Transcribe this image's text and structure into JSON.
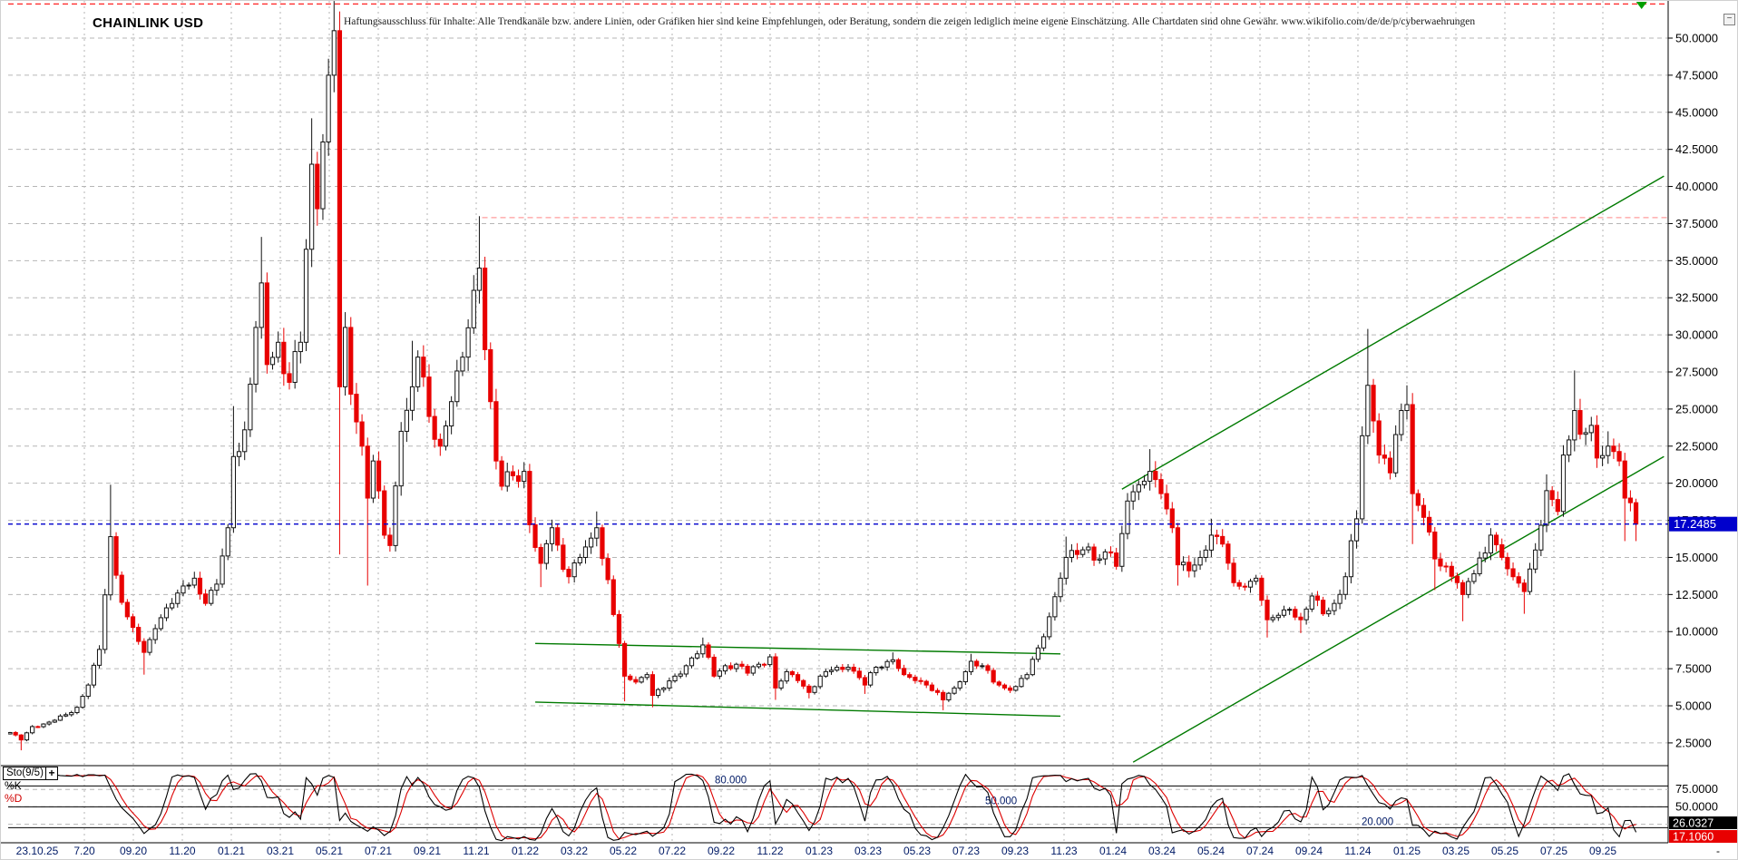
{
  "header": {
    "title": "CHAINLINK USD",
    "disclaimer": "Haftungsausschluss für Inhalte: Alle Trendkanäle bzw. andere Linien, oder Grafiken hier sind keine Empfehlungen, oder Beratung, sondern die zeigen lediglich meine eigene Einschätzung. Alle Chartdaten sind ohne Gewähr.  www.wikifolio.com/de/de/p/cyberwaehrungen",
    "minimize_label": "−"
  },
  "price_axis": {
    "labels": [
      "50.0000",
      "47.5000",
      "45.0000",
      "42.5000",
      "40.0000",
      "37.5000",
      "35.0000",
      "32.5000",
      "30.0000",
      "27.5000",
      "25.0000",
      "22.5000",
      "20.0000",
      "17.5000",
      "15.0000",
      "12.5000",
      "10.0000",
      "7.5000",
      "5.0000",
      "2.5000"
    ],
    "current_price_label": "17.2485",
    "current_price_color": "#0000cc"
  },
  "time_axis": {
    "first_label": "23.10.25",
    "labels": [
      "7.20",
      "09.20",
      "11.20",
      "01.21",
      "03.21",
      "05.21",
      "07.21",
      "09.21",
      "11.21",
      "01.22",
      "03.22",
      "05.22",
      "07.22",
      "09.22",
      "11.22",
      "01.23",
      "03.23",
      "05.23",
      "07.23",
      "09.23",
      "11.23",
      "01.24",
      "03.24",
      "05.24",
      "07.24",
      "09.24",
      "11.24",
      "01.25",
      "03.25",
      "05.25",
      "07.25",
      "09.25"
    ],
    "trailing_label": "-",
    "text_color": "#001a66"
  },
  "indicator": {
    "name": "Sto(9/5)",
    "plus_label": "+",
    "k_label": "%K",
    "d_label": "%D",
    "k_value": "26.0327",
    "d_value": "17.1060",
    "k_color": "#000000",
    "d_color": "#dd0000",
    "level_labels": [
      "80.000",
      "50.000",
      "20.000"
    ],
    "axis_labels": [
      "75.0000",
      "50.0000"
    ]
  },
  "colors": {
    "up_candle_fill": "#ffffff",
    "up_candle_border": "#111111",
    "down_candle": "#e80000",
    "grid": "#b6b6b6",
    "trend_green": "#007a00",
    "resistance_red": "#ff2222",
    "resistance_salmon": "#ff9c9c",
    "current_blue": "#0000cc",
    "tag_blue_bg": "#0000cc",
    "tag_black_bg": "#000000",
    "tag_red_bg": "#e80000"
  },
  "chart_data": {
    "type": "candlestick+stochastic",
    "symbol": "CHAINLINK USD",
    "timeframe": "weekly",
    "snapshot_date": "23.10.25",
    "weeks_total": 292,
    "last_price": 17.2485,
    "ylim": [
      1.0,
      53.5
    ],
    "price_gridstep": 2.5,
    "close_anchors": [
      [
        0,
        3.2
      ],
      [
        2,
        2.7
      ],
      [
        4,
        3.6
      ],
      [
        7,
        3.9
      ],
      [
        10,
        4.4
      ],
      [
        12,
        4.9
      ],
      [
        14,
        6.4
      ],
      [
        16,
        8.8
      ],
      [
        18,
        16.4
      ],
      [
        19,
        13.8
      ],
      [
        21,
        11.0
      ],
      [
        24,
        8.6
      ],
      [
        26,
        10.2
      ],
      [
        28,
        11.6
      ],
      [
        30,
        12.6
      ],
      [
        33,
        13.6
      ],
      [
        35,
        11.9
      ],
      [
        37,
        13.2
      ],
      [
        39,
        17.0
      ],
      [
        40,
        21.8
      ],
      [
        42,
        23.6
      ],
      [
        44,
        30.5
      ],
      [
        45,
        33.5
      ],
      [
        46,
        28.0
      ],
      [
        48,
        29.5
      ],
      [
        50,
        26.8
      ],
      [
        52,
        29.5
      ],
      [
        54,
        41.5
      ],
      [
        55,
        38.5
      ],
      [
        56,
        43.0
      ],
      [
        57,
        47.5
      ],
      [
        58,
        50.5
      ],
      [
        59,
        26.5
      ],
      [
        60,
        30.5
      ],
      [
        61,
        26.0
      ],
      [
        63,
        22.5
      ],
      [
        64,
        19.0
      ],
      [
        65,
        21.5
      ],
      [
        67,
        16.5
      ],
      [
        68,
        15.8
      ],
      [
        70,
        23.5
      ],
      [
        72,
        26.5
      ],
      [
        73,
        28.5
      ],
      [
        75,
        24.5
      ],
      [
        77,
        22.5
      ],
      [
        79,
        25.5
      ],
      [
        81,
        28.5
      ],
      [
        83,
        33.0
      ],
      [
        84,
        34.5
      ],
      [
        85,
        29.0
      ],
      [
        86,
        25.5
      ],
      [
        87,
        21.5
      ],
      [
        88,
        19.8
      ],
      [
        90,
        20.5
      ],
      [
        92,
        20.8
      ],
      [
        93,
        17.2
      ],
      [
        95,
        14.6
      ],
      [
        97,
        17.0
      ],
      [
        99,
        14.2
      ],
      [
        100,
        13.7
      ],
      [
        102,
        15.0
      ],
      [
        104,
        16.3
      ],
      [
        105,
        17.0
      ],
      [
        107,
        13.5
      ],
      [
        109,
        9.2
      ],
      [
        110,
        7.0
      ],
      [
        112,
        6.6
      ],
      [
        114,
        7.1
      ],
      [
        115,
        5.7
      ],
      [
        117,
        6.2
      ],
      [
        119,
        7.0
      ],
      [
        121,
        7.7
      ],
      [
        124,
        9.1
      ],
      [
        126,
        7.0
      ],
      [
        128,
        7.7
      ],
      [
        130,
        7.8
      ],
      [
        132,
        7.2
      ],
      [
        134,
        7.8
      ],
      [
        136,
        8.3
      ],
      [
        137,
        6.2
      ],
      [
        139,
        7.3
      ],
      [
        141,
        6.7
      ],
      [
        143,
        5.9
      ],
      [
        145,
        7.0
      ],
      [
        147,
        7.4
      ],
      [
        150,
        7.6
      ],
      [
        152,
        6.9
      ],
      [
        153,
        6.4
      ],
      [
        155,
        7.6
      ],
      [
        158,
        8.1
      ],
      [
        160,
        7.1
      ],
      [
        162,
        6.7
      ],
      [
        164,
        6.4
      ],
      [
        166,
        5.9
      ],
      [
        167,
        5.4
      ],
      [
        169,
        6.2
      ],
      [
        171,
        7.3
      ],
      [
        172,
        8.0
      ],
      [
        174,
        7.7
      ],
      [
        176,
        6.6
      ],
      [
        178,
        6.2
      ],
      [
        180,
        6.3
      ],
      [
        182,
        7.1
      ],
      [
        184,
        8.9
      ],
      [
        186,
        11.0
      ],
      [
        188,
        13.6
      ],
      [
        189,
        15.0
      ],
      [
        191,
        15.2
      ],
      [
        193,
        15.7
      ],
      [
        195,
        14.9
      ],
      [
        197,
        15.3
      ],
      [
        198,
        14.4
      ],
      [
        200,
        18.8
      ],
      [
        202,
        19.9
      ],
      [
        204,
        20.8
      ],
      [
        206,
        19.3
      ],
      [
        208,
        17.0
      ],
      [
        209,
        14.5
      ],
      [
        211,
        14.1
      ],
      [
        213,
        15.0
      ],
      [
        215,
        16.5
      ],
      [
        217,
        15.9
      ],
      [
        219,
        13.3
      ],
      [
        221,
        13.0
      ],
      [
        223,
        13.6
      ],
      [
        225,
        10.8
      ],
      [
        227,
        11.1
      ],
      [
        229,
        11.5
      ],
      [
        231,
        10.8
      ],
      [
        233,
        12.4
      ],
      [
        235,
        11.2
      ],
      [
        237,
        11.9
      ],
      [
        239,
        13.7
      ],
      [
        241,
        17.6
      ],
      [
        242,
        23.2
      ],
      [
        243,
        26.6
      ],
      [
        244,
        24.2
      ],
      [
        245,
        21.9
      ],
      [
        247,
        20.7
      ],
      [
        249,
        24.9
      ],
      [
        250,
        25.3
      ],
      [
        251,
        19.3
      ],
      [
        253,
        17.7
      ],
      [
        255,
        14.9
      ],
      [
        257,
        14.4
      ],
      [
        259,
        13.3
      ],
      [
        260,
        12.5
      ],
      [
        262,
        13.9
      ],
      [
        264,
        15.3
      ],
      [
        265,
        16.5
      ],
      [
        267,
        15.0
      ],
      [
        269,
        13.7
      ],
      [
        271,
        12.7
      ],
      [
        273,
        15.5
      ],
      [
        275,
        19.5
      ],
      [
        277,
        18.1
      ],
      [
        278,
        21.9
      ],
      [
        280,
        24.9
      ],
      [
        281,
        23.3
      ],
      [
        283,
        23.9
      ],
      [
        284,
        21.7
      ],
      [
        286,
        22.5
      ],
      [
        288,
        21.5
      ],
      [
        289,
        19.0
      ],
      [
        291,
        17.2485
      ]
    ],
    "wick_highs": [
      [
        18,
        19.9
      ],
      [
        40,
        25.2
      ],
      [
        45,
        36.6
      ],
      [
        54,
        44.6
      ],
      [
        58,
        52.5
      ],
      [
        72,
        29.6
      ],
      [
        84,
        38.0
      ],
      [
        105,
        18.1
      ],
      [
        124,
        9.6
      ],
      [
        158,
        8.6
      ],
      [
        172,
        8.5
      ],
      [
        189,
        16.4
      ],
      [
        204,
        22.3
      ],
      [
        215,
        17.6
      ],
      [
        243,
        30.4
      ],
      [
        250,
        26.6
      ],
      [
        275,
        20.6
      ],
      [
        280,
        27.6
      ],
      [
        286,
        23.5
      ]
    ],
    "wick_lows": [
      [
        2,
        2.0
      ],
      [
        24,
        7.1
      ],
      [
        59,
        15.2
      ],
      [
        64,
        13.1
      ],
      [
        95,
        13.0
      ],
      [
        110,
        5.3
      ],
      [
        115,
        4.9
      ],
      [
        137,
        5.4
      ],
      [
        143,
        5.5
      ],
      [
        153,
        5.8
      ],
      [
        167,
        4.7
      ],
      [
        209,
        13.1
      ],
      [
        225,
        9.6
      ],
      [
        231,
        9.9
      ],
      [
        251,
        15.9
      ],
      [
        255,
        12.8
      ],
      [
        260,
        10.7
      ],
      [
        271,
        11.2
      ],
      [
        289,
        16.1
      ],
      [
        291,
        16.1
      ]
    ],
    "overlays": {
      "ath_resistance": {
        "price": 52.3,
        "color": "#ff2222",
        "style": "dashed",
        "full_width": true
      },
      "nov2021_resistance": {
        "price": 37.9,
        "from_week": 84.5,
        "color": "#ff9c9c",
        "style": "dashed"
      },
      "current_price_line": {
        "price": 17.2485,
        "color": "#0000cc",
        "style": "dashed",
        "full_width": true
      },
      "range_channel_2022_2023": {
        "upper": {
          "from": [
            94,
            9.2
          ],
          "to": [
            188,
            8.5
          ]
        },
        "lower": {
          "from": [
            94,
            5.25
          ],
          "to": [
            188,
            4.3
          ]
        },
        "color": "#007a00"
      },
      "ascending_channel_2024_2025": {
        "upper": {
          "from": [
            199,
            19.6
          ],
          "to": [
            296,
            40.7
          ]
        },
        "lower": {
          "from": [
            201,
            1.2
          ],
          "to": [
            296,
            21.8
          ]
        },
        "color": "#007a00"
      },
      "top_marker_triangle": {
        "week": 292,
        "color": "#00a000"
      }
    },
    "stochastic": {
      "k_period": 9,
      "d_smoothing": 3,
      "k_last": 26.0327,
      "d_last": 17.106,
      "solid_levels": [
        80,
        50,
        20
      ],
      "dashed_levels": [
        75,
        50,
        25
      ],
      "range": [
        0,
        100
      ]
    }
  }
}
